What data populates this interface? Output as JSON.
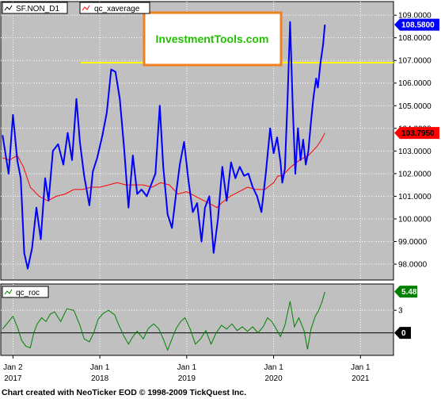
{
  "watermark": "InvestmentTools.com",
  "footer": "Chart created with NeoTicker EOD © 1998-2009 TickQuest Inc.",
  "colors": {
    "background": "#c0c0c0",
    "price": "#0000ff",
    "average": "#ff0000",
    "roc": "#008000",
    "resistance": "#ffff00",
    "watermark_border": "#f08020",
    "watermark_text": "#22c000",
    "price_tag": "#0000ff",
    "average_tag": "#ff0000",
    "roc_tag": "#008000",
    "zero_tag": "#000000"
  },
  "chart_data": [
    {
      "type": "line",
      "panel": "price",
      "legend": [
        "SF.NON_D1",
        "qc_xaverage"
      ],
      "ylim": [
        97.3,
        109.6
      ],
      "yticks": [
        "98.0000",
        "99.0000",
        "100.0000",
        "101.0000",
        "102.0000",
        "103.0000",
        "104.0000",
        "105.0000",
        "106.0000",
        "107.0000",
        "108.0000",
        "109.0000"
      ],
      "xlim": [
        2016.86,
        2021.38
      ],
      "resistance_level": 106.9,
      "last_price_label": "108.5800",
      "last_average_label": "103.7950",
      "series": [
        {
          "name": "SF.NON_D1",
          "points": [
            [
              2016.88,
              103.7
            ],
            [
              2016.95,
              102.0
            ],
            [
              2017.0,
              104.6
            ],
            [
              2017.05,
              102.6
            ],
            [
              2017.09,
              101.8
            ],
            [
              2017.13,
              98.5
            ],
            [
              2017.17,
              97.8
            ],
            [
              2017.22,
              98.7
            ],
            [
              2017.27,
              100.5
            ],
            [
              2017.32,
              99.1
            ],
            [
              2017.37,
              101.8
            ],
            [
              2017.41,
              100.8
            ],
            [
              2017.46,
              103.0
            ],
            [
              2017.52,
              103.3
            ],
            [
              2017.58,
              102.4
            ],
            [
              2017.63,
              103.8
            ],
            [
              2017.68,
              102.6
            ],
            [
              2017.73,
              105.3
            ],
            [
              2017.77,
              103.4
            ],
            [
              2017.82,
              101.9
            ],
            [
              2017.88,
              100.6
            ],
            [
              2017.92,
              102.1
            ],
            [
              2017.97,
              102.7
            ],
            [
              2018.03,
              103.7
            ],
            [
              2018.08,
              104.7
            ],
            [
              2018.13,
              106.6
            ],
            [
              2018.18,
              106.5
            ],
            [
              2018.23,
              105.3
            ],
            [
              2018.28,
              103.1
            ],
            [
              2018.33,
              100.5
            ],
            [
              2018.38,
              102.8
            ],
            [
              2018.43,
              101.1
            ],
            [
              2018.48,
              101.3
            ],
            [
              2018.54,
              101.0
            ],
            [
              2018.59,
              101.5
            ],
            [
              2018.64,
              102.0
            ],
            [
              2018.69,
              105.0
            ],
            [
              2018.73,
              102.3
            ],
            [
              2018.78,
              100.2
            ],
            [
              2018.83,
              99.6
            ],
            [
              2018.88,
              101.2
            ],
            [
              2018.92,
              102.4
            ],
            [
              2018.97,
              103.4
            ],
            [
              2019.02,
              101.7
            ],
            [
              2019.07,
              100.3
            ],
            [
              2019.12,
              100.7
            ],
            [
              2019.17,
              99.0
            ],
            [
              2019.21,
              100.5
            ],
            [
              2019.26,
              101.0
            ],
            [
              2019.31,
              98.5
            ],
            [
              2019.36,
              100.0
            ],
            [
              2019.41,
              102.3
            ],
            [
              2019.46,
              100.8
            ],
            [
              2019.51,
              102.5
            ],
            [
              2019.56,
              101.8
            ],
            [
              2019.61,
              102.3
            ],
            [
              2019.66,
              101.9
            ],
            [
              2019.71,
              102.0
            ],
            [
              2019.76,
              101.4
            ],
            [
              2019.81,
              101.0
            ],
            [
              2019.86,
              100.3
            ],
            [
              2019.91,
              102.0
            ],
            [
              2019.96,
              104.0
            ],
            [
              2020.0,
              102.9
            ],
            [
              2020.04,
              103.6
            ],
            [
              2020.08,
              102.5
            ],
            [
              2020.1,
              101.6
            ],
            [
              2020.13,
              102.2
            ],
            [
              2020.16,
              105.2
            ],
            [
              2020.19,
              108.7
            ],
            [
              2020.22,
              105.0
            ],
            [
              2020.25,
              102.0
            ],
            [
              2020.28,
              104.0
            ],
            [
              2020.31,
              102.6
            ],
            [
              2020.34,
              103.5
            ],
            [
              2020.37,
              102.4
            ],
            [
              2020.4,
              103.0
            ],
            [
              2020.43,
              104.3
            ],
            [
              2020.46,
              105.4
            ],
            [
              2020.49,
              106.2
            ],
            [
              2020.51,
              105.8
            ],
            [
              2020.54,
              106.9
            ],
            [
              2020.57,
              107.7
            ],
            [
              2020.59,
              108.58
            ]
          ]
        },
        {
          "name": "qc_xaverage",
          "points": [
            [
              2016.88,
              102.7
            ],
            [
              2016.96,
              102.6
            ],
            [
              2017.05,
              102.8
            ],
            [
              2017.12,
              102.3
            ],
            [
              2017.2,
              101.4
            ],
            [
              2017.3,
              101.0
            ],
            [
              2017.4,
              100.8
            ],
            [
              2017.5,
              101.0
            ],
            [
              2017.6,
              101.1
            ],
            [
              2017.7,
              101.3
            ],
            [
              2017.8,
              101.3
            ],
            [
              2017.9,
              101.4
            ],
            [
              2018.0,
              101.4
            ],
            [
              2018.1,
              101.5
            ],
            [
              2018.2,
              101.6
            ],
            [
              2018.3,
              101.5
            ],
            [
              2018.4,
              101.5
            ],
            [
              2018.5,
              101.5
            ],
            [
              2018.6,
              101.4
            ],
            [
              2018.7,
              101.6
            ],
            [
              2018.8,
              101.5
            ],
            [
              2018.9,
              101.1
            ],
            [
              2019.0,
              101.2
            ],
            [
              2019.1,
              101.0
            ],
            [
              2019.2,
              100.8
            ],
            [
              2019.3,
              100.6
            ],
            [
              2019.35,
              100.5
            ],
            [
              2019.4,
              100.7
            ],
            [
              2019.5,
              101.0
            ],
            [
              2019.6,
              101.2
            ],
            [
              2019.7,
              101.4
            ],
            [
              2019.8,
              101.3
            ],
            [
              2019.9,
              101.3
            ],
            [
              2020.0,
              101.6
            ],
            [
              2020.05,
              101.9
            ],
            [
              2020.1,
              101.9
            ],
            [
              2020.2,
              102.3
            ],
            [
              2020.3,
              102.6
            ],
            [
              2020.4,
              102.8
            ],
            [
              2020.5,
              103.2
            ],
            [
              2020.55,
              103.5
            ],
            [
              2020.59,
              103.795
            ]
          ]
        }
      ]
    },
    {
      "type": "line",
      "panel": "roc",
      "legend": [
        "qc_roc"
      ],
      "ylim": [
        -3.0,
        6.5
      ],
      "yticks": [
        "3"
      ],
      "xlim": [
        2016.86,
        2021.38
      ],
      "last_roc_label": "5.48",
      "zero_label": "0",
      "series": [
        {
          "name": "qc_roc",
          "points": [
            [
              2016.88,
              0.5
            ],
            [
              2016.95,
              1.5
            ],
            [
              2017.0,
              2.2
            ],
            [
              2017.06,
              0.5
            ],
            [
              2017.1,
              -1.0
            ],
            [
              2017.15,
              -1.8
            ],
            [
              2017.2,
              -2.0
            ],
            [
              2017.24,
              0.0
            ],
            [
              2017.28,
              1.2
            ],
            [
              2017.33,
              2.0
            ],
            [
              2017.38,
              1.5
            ],
            [
              2017.43,
              2.5
            ],
            [
              2017.48,
              2.8
            ],
            [
              2017.55,
              1.5
            ],
            [
              2017.62,
              3.2
            ],
            [
              2017.7,
              3.0
            ],
            [
              2017.77,
              1.0
            ],
            [
              2017.82,
              -0.8
            ],
            [
              2017.88,
              -1.2
            ],
            [
              2017.93,
              0.0
            ],
            [
              2017.98,
              1.8
            ],
            [
              2018.04,
              2.6
            ],
            [
              2018.1,
              3.0
            ],
            [
              2018.17,
              2.4
            ],
            [
              2018.22,
              1.0
            ],
            [
              2018.28,
              -0.5
            ],
            [
              2018.33,
              -1.5
            ],
            [
              2018.38,
              -0.5
            ],
            [
              2018.43,
              0.2
            ],
            [
              2018.5,
              -0.8
            ],
            [
              2018.56,
              0.6
            ],
            [
              2018.62,
              1.2
            ],
            [
              2018.68,
              0.5
            ],
            [
              2018.73,
              -0.8
            ],
            [
              2018.78,
              -2.3
            ],
            [
              2018.84,
              -0.5
            ],
            [
              2018.88,
              0.6
            ],
            [
              2018.93,
              1.5
            ],
            [
              2018.98,
              2.0
            ],
            [
              2019.04,
              0.5
            ],
            [
              2019.1,
              -1.5
            ],
            [
              2019.16,
              -0.8
            ],
            [
              2019.22,
              0.3
            ],
            [
              2019.28,
              -1.5
            ],
            [
              2019.34,
              0.0
            ],
            [
              2019.4,
              1.0
            ],
            [
              2019.46,
              0.5
            ],
            [
              2019.52,
              1.2
            ],
            [
              2019.58,
              0.3
            ],
            [
              2019.64,
              0.8
            ],
            [
              2019.7,
              0.2
            ],
            [
              2019.76,
              0.8
            ],
            [
              2019.82,
              0.0
            ],
            [
              2019.88,
              0.8
            ],
            [
              2019.93,
              2.0
            ],
            [
              2019.98,
              1.5
            ],
            [
              2020.03,
              0.5
            ],
            [
              2020.08,
              -0.5
            ],
            [
              2020.13,
              1.0
            ],
            [
              2020.19,
              4.2
            ],
            [
              2020.24,
              0.8
            ],
            [
              2020.29,
              2.0
            ],
            [
              2020.35,
              0.3
            ],
            [
              2020.39,
              -2.2
            ],
            [
              2020.43,
              0.5
            ],
            [
              2020.48,
              2.2
            ],
            [
              2020.52,
              3.0
            ],
            [
              2020.56,
              4.2
            ],
            [
              2020.59,
              5.48
            ]
          ]
        }
      ]
    }
  ],
  "x_axis": {
    "ticks": [
      {
        "year": 2017.0,
        "label": "Jan 2",
        "year_label": "2017"
      },
      {
        "year": 2018.0,
        "label": "Jan 1",
        "year_label": "2018"
      },
      {
        "year": 2019.0,
        "label": "Jan 1",
        "year_label": "2019"
      },
      {
        "year": 2020.0,
        "label": "Jan 1",
        "year_label": "2020"
      },
      {
        "year": 2021.0,
        "label": "Jan 1",
        "year_label": "2021"
      }
    ]
  }
}
